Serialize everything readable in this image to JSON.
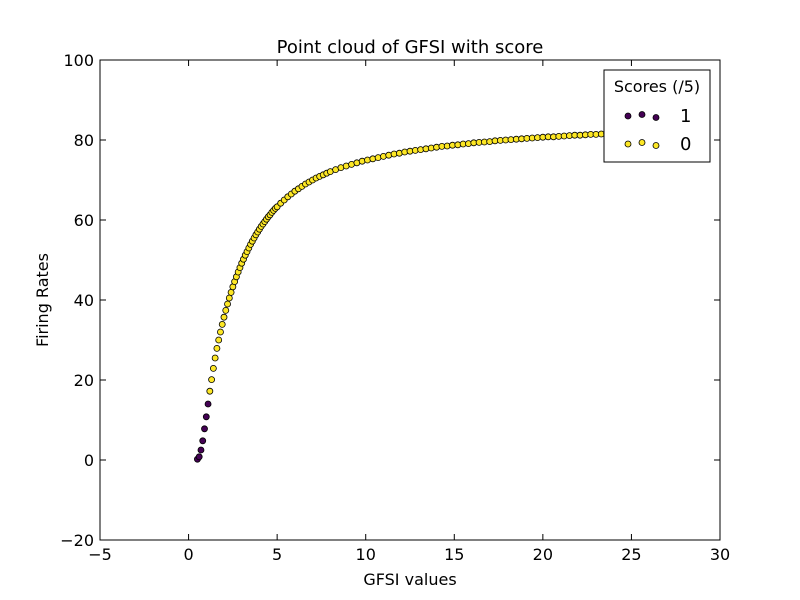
{
  "chart_data": {
    "type": "scatter",
    "title": "Point cloud of GFSI with score",
    "xlabel": "GFSI values",
    "ylabel": "Firing Rates",
    "xlim": [
      -5,
      30
    ],
    "ylim": [
      -20,
      100
    ],
    "xticks": [
      -5,
      0,
      5,
      10,
      15,
      20,
      25,
      30
    ],
    "xtick_labels": [
      "−5",
      "0",
      "5",
      "10",
      "15",
      "20",
      "25",
      "30"
    ],
    "yticks": [
      -20,
      0,
      20,
      40,
      60,
      80,
      100
    ],
    "ytick_labels": [
      "−20",
      "0",
      "20",
      "40",
      "60",
      "80",
      "100"
    ],
    "grid": false,
    "legend": {
      "title": "Scores (/5)",
      "placement": "top-right",
      "entries": [
        {
          "label": "1",
          "color": "#440154"
        },
        {
          "label": "0",
          "color": "#fde725"
        }
      ]
    },
    "series": [
      {
        "label": "1",
        "color": "#440154",
        "x": [
          0.5,
          0.6,
          0.7,
          0.8,
          0.9,
          1.0,
          1.1
        ],
        "y": [
          0.2,
          0.8,
          2.5,
          4.8,
          7.8,
          10.8,
          14.0
        ]
      },
      {
        "label": "0",
        "color": "#fde725",
        "x": [
          1.2,
          1.3,
          1.4,
          1.5,
          1.6,
          1.7,
          1.8,
          1.9,
          2.0,
          2.1,
          2.2,
          2.3,
          2.4,
          2.5,
          2.6,
          2.7,
          2.8,
          2.9,
          3.0,
          3.1,
          3.2,
          3.3,
          3.4,
          3.5,
          3.6,
          3.7,
          3.8,
          3.9,
          4.0,
          4.1,
          4.2,
          4.3,
          4.4,
          4.5,
          4.6,
          4.7,
          4.8,
          4.9,
          5.0,
          5.2,
          5.4,
          5.6,
          5.8,
          6.0,
          6.2,
          6.4,
          6.6,
          6.8,
          7.0,
          7.2,
          7.4,
          7.6,
          7.8,
          8.0,
          8.3,
          8.6,
          8.9,
          9.2,
          9.5,
          9.8,
          10.1,
          10.4,
          10.7,
          11.0,
          11.3,
          11.6,
          11.9,
          12.2,
          12.5,
          12.8,
          13.1,
          13.4,
          13.7,
          14.0,
          14.3,
          14.6,
          14.9,
          15.2,
          15.5,
          15.8,
          16.1,
          16.4,
          16.7,
          17.0,
          17.3,
          17.6,
          17.9,
          18.2,
          18.5,
          18.8,
          19.1,
          19.4,
          19.7,
          20.0,
          20.3,
          20.6,
          20.9,
          21.2,
          21.5,
          21.8,
          22.1,
          22.4,
          22.7,
          23.0,
          23.3,
          23.6,
          23.9
        ],
        "y": [
          17.2,
          20.1,
          22.9,
          25.5,
          27.9,
          30.0,
          32.0,
          33.9,
          35.7,
          37.4,
          39.0,
          40.5,
          41.9,
          43.3,
          44.6,
          45.8,
          47.0,
          48.1,
          49.2,
          50.2,
          51.2,
          52.1,
          53.0,
          53.9,
          54.7,
          55.5,
          56.3,
          57.0,
          57.7,
          58.4,
          59.0,
          59.6,
          60.2,
          60.8,
          61.3,
          61.9,
          62.4,
          62.9,
          63.3,
          64.2,
          65.0,
          65.8,
          66.5,
          67.2,
          67.8,
          68.4,
          69.0,
          69.5,
          70.0,
          70.5,
          70.9,
          71.3,
          71.7,
          72.1,
          72.6,
          73.1,
          73.5,
          73.9,
          74.3,
          74.7,
          75.0,
          75.3,
          75.6,
          75.9,
          76.2,
          76.5,
          76.7,
          77.0,
          77.2,
          77.4,
          77.6,
          77.8,
          78.0,
          78.2,
          78.4,
          78.5,
          78.7,
          78.8,
          79.0,
          79.1,
          79.3,
          79.4,
          79.5,
          79.6,
          79.8,
          79.9,
          80.0,
          80.1,
          80.2,
          80.3,
          80.4,
          80.5,
          80.6,
          80.7,
          80.8,
          80.8,
          80.9,
          81.0,
          81.1,
          81.2,
          81.2,
          81.3,
          81.4,
          81.4,
          81.5,
          81.6,
          81.6
        ]
      }
    ]
  }
}
